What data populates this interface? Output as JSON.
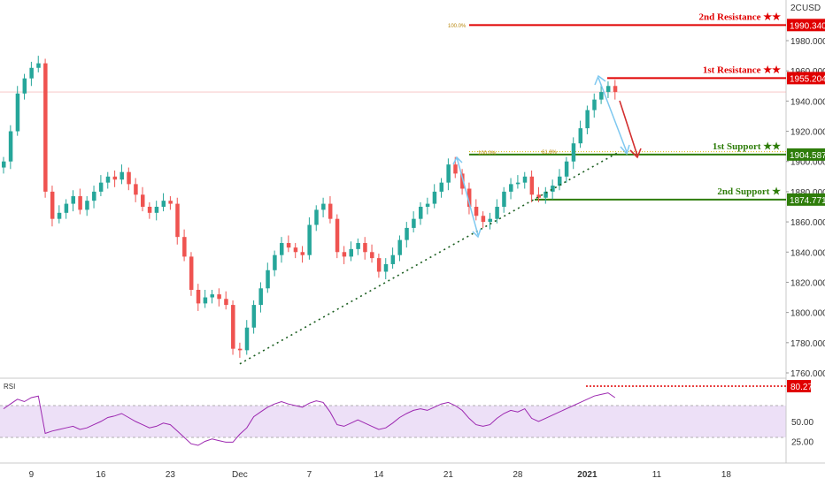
{
  "currency_label": "USD",
  "price_axis_top_label": "2C",
  "chart_data": {
    "type": "candlestick",
    "instrument_currency": "USD",
    "price_axis": {
      "min": 1760,
      "max": 2000,
      "ticks": [
        "1980.000",
        "1960.000",
        "1940.000",
        "1920.000",
        "1900.000",
        "1880.000",
        "1860.000",
        "1840.000",
        "1820.000",
        "1800.000",
        "1780.000",
        "1760.000"
      ]
    },
    "date_axis": {
      "ticks": [
        {
          "label": "9",
          "bar": 4
        },
        {
          "label": "16",
          "bar": 14
        },
        {
          "label": "23",
          "bar": 24
        },
        {
          "label": "Dec",
          "bar": 34
        },
        {
          "label": "7",
          "bar": 44
        },
        {
          "label": "14",
          "bar": 54
        },
        {
          "label": "21",
          "bar": 64
        },
        {
          "label": "28",
          "bar": 74
        },
        {
          "label": "2021",
          "bar": 84
        },
        {
          "label": "11",
          "bar": 94
        },
        {
          "label": "18",
          "bar": 104
        }
      ]
    },
    "closes": [
      1900,
      1920,
      1945,
      1955,
      1962,
      1965,
      1880,
      1862,
      1866,
      1872,
      1877,
      1868,
      1874,
      1880,
      1886,
      1890,
      1888,
      1893,
      1885,
      1878,
      1870,
      1866,
      1870,
      1874,
      1872,
      1850,
      1837,
      1815,
      1806,
      1810,
      1812,
      1809,
      1805,
      1776,
      1775,
      1790,
      1805,
      1816,
      1828,
      1838,
      1846,
      1843,
      1840,
      1838,
      1858,
      1868,
      1872,
      1862,
      1840,
      1837,
      1842,
      1846,
      1840,
      1836,
      1827,
      1832,
      1838,
      1848,
      1856,
      1862,
      1870,
      1872,
      1880,
      1886,
      1898,
      1892,
      1882,
      1870,
      1864,
      1860,
      1862,
      1870,
      1880,
      1885,
      1886,
      1890,
      1878,
      1876,
      1880,
      1884,
      1890,
      1900,
      1912,
      1922,
      1934,
      1941,
      1946,
      1950,
      1946
    ],
    "levels": [
      {
        "name": "2nd Resistance",
        "stars": "★★",
        "value": "1990.340",
        "color": "#e00000"
      },
      {
        "name": "1st Resistance",
        "stars": "★★",
        "value": "1955.204",
        "color": "#e00000"
      },
      {
        "name": "1st Support",
        "stars": "★★",
        "value": "1904.587",
        "color": "#2e7d0a"
      },
      {
        "name": "2nd Support",
        "stars": "★",
        "value": "1874.771",
        "color": "#2e7d0a"
      }
    ],
    "fib_labels": [
      "100.0%",
      "100.0%",
      "61.8%"
    ],
    "trendline": {
      "from": {
        "bar": 34,
        "price": 1766
      },
      "to": {
        "bar": 84,
        "price": 1908
      }
    },
    "current_price_line": 1946,
    "rsi": {
      "label": "RSI",
      "ticks": [
        "50.00",
        "25.00"
      ],
      "value_tag": "80.27",
      "upper_band": 70,
      "lower_band": 30,
      "values": [
        66,
        72,
        78,
        75,
        80,
        82,
        35,
        38,
        40,
        42,
        44,
        40,
        42,
        46,
        50,
        55,
        57,
        60,
        55,
        50,
        46,
        42,
        44,
        48,
        46,
        38,
        30,
        22,
        20,
        25,
        28,
        26,
        24,
        24,
        34,
        42,
        56,
        62,
        68,
        72,
        75,
        72,
        70,
        68,
        73,
        76,
        74,
        62,
        46,
        44,
        48,
        52,
        48,
        44,
        40,
        42,
        48,
        55,
        60,
        64,
        66,
        64,
        68,
        72,
        74,
        70,
        64,
        54,
        46,
        44,
        46,
        54,
        60,
        64,
        62,
        66,
        54,
        50,
        54,
        58,
        62,
        66,
        70,
        74,
        78,
        82,
        84,
        86,
        80
      ]
    },
    "accent_colors": {
      "resistance": "#e00000",
      "support": "#2e7d0a",
      "bull": "#26a69a",
      "bear": "#ef5350",
      "rsi_line": "#9c27b0",
      "rsi_fill": "#ede0f7",
      "arrow_blue": "#7ec8f0",
      "arrow_red": "#d32f2f"
    }
  }
}
